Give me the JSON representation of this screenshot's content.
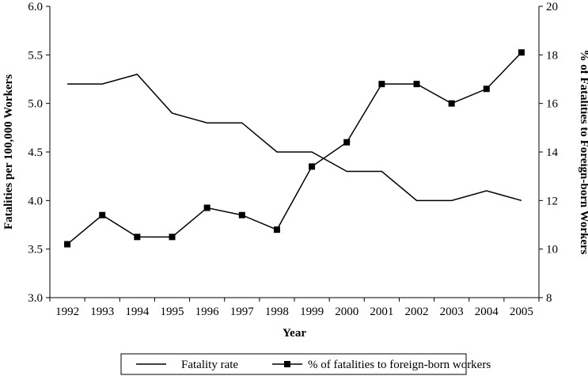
{
  "chart_data": {
    "type": "line",
    "title": "",
    "xlabel": "Year",
    "ylabel": "Fatalities per 100,000 Workers",
    "y2label": "% of Fatalities to Foreign-born Workers",
    "categories": [
      "1992",
      "1993",
      "1994",
      "1995",
      "1996",
      "1997",
      "1998",
      "1999",
      "2000",
      "2001",
      "2002",
      "2003",
      "2004",
      "2005"
    ],
    "ylim": [
      3.0,
      6.0
    ],
    "y2lim": [
      8,
      20
    ],
    "yticks": [
      "3.0",
      "3.5",
      "4.0",
      "4.5",
      "5.0",
      "5.5",
      "6.0"
    ],
    "y2ticks": [
      "8",
      "10",
      "12",
      "14",
      "16",
      "18",
      "20"
    ],
    "grid": false,
    "legend_position": "bottom",
    "series": [
      {
        "name": "Fatality rate",
        "axis": "left",
        "marker": "none",
        "values": [
          5.2,
          5.2,
          5.3,
          4.9,
          4.8,
          4.8,
          4.5,
          4.5,
          4.3,
          4.3,
          4.0,
          4.0,
          4.1,
          4.0
        ]
      },
      {
        "name": "% of fatalities to foreign-born workers",
        "axis": "right",
        "marker": "square",
        "values": [
          10.2,
          11.4,
          10.5,
          10.5,
          11.7,
          11.4,
          10.8,
          13.4,
          14.4,
          16.8,
          16.8,
          16.0,
          16.6,
          18.1
        ]
      }
    ]
  }
}
